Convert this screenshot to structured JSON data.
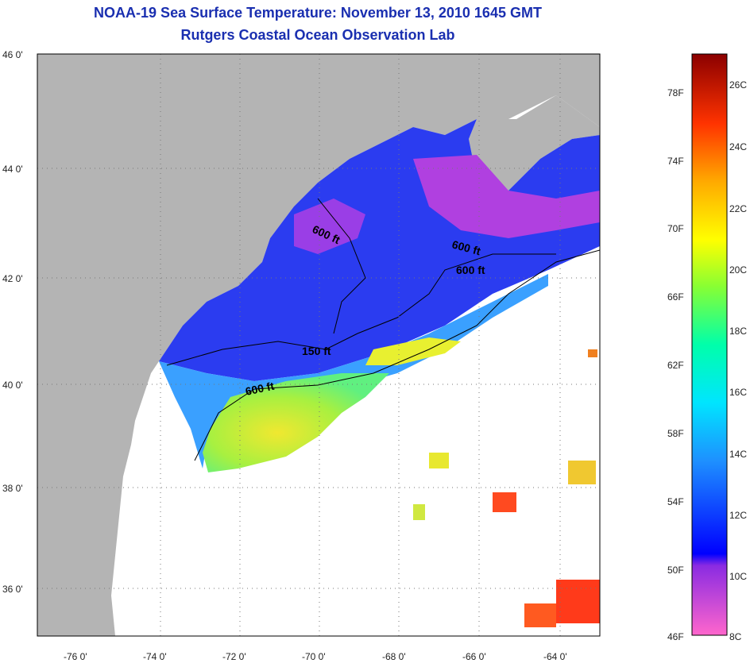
{
  "header": {
    "title": "NOAA-19 Sea Surface Temperature:  November 13, 2010 1645 GMT",
    "subtitle": "Rutgers Coastal Ocean Observation Lab"
  },
  "axes": {
    "lat_labels": [
      "46 0'",
      "44 0'",
      "42 0'",
      "40 0'",
      "38 0'",
      "36 0'"
    ],
    "lon_labels": [
      "-76 0'",
      "-74 0'",
      "-72 0'",
      "-70 0'",
      "-68 0'",
      "-66 0'",
      "-64 0'"
    ]
  },
  "contours": {
    "labels": [
      "600 ft",
      "600 ft",
      "600 ft",
      "150 ft",
      "600 ft"
    ]
  },
  "colorbar": {
    "fahrenheit": [
      "78F",
      "74F",
      "70F",
      "66F",
      "62F",
      "58F",
      "54F",
      "50F",
      "46F"
    ],
    "celsius": [
      "26C",
      "24C",
      "22C",
      "20C",
      "18C",
      "16C",
      "14C",
      "12C",
      "10C",
      "8C"
    ]
  },
  "colors": {
    "title": "#1a2fb0",
    "land": "#b4b4b4",
    "no_data": "#ffffff"
  }
}
